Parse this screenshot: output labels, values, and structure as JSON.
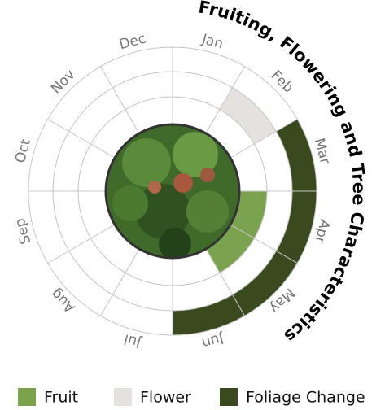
{
  "chart_data": {
    "type": "radial-calendar",
    "title": "Fruiting, Flowering and Tree Characteristics",
    "categories": [
      "Jan",
      "Feb",
      "Mar",
      "Apr",
      "May",
      "Jun",
      "Jul",
      "Aug",
      "Sep",
      "Oct",
      "Nov",
      "Dec"
    ],
    "series": [
      {
        "name": "Fruit",
        "color": "#7ba24f",
        "values": [
          0,
          0,
          0,
          1,
          1,
          0,
          0,
          0,
          0,
          0,
          0,
          0
        ]
      },
      {
        "name": "Flower",
        "color": "#e5e1de",
        "values": [
          0,
          1,
          0,
          0,
          0,
          0,
          0,
          0,
          0,
          0,
          0,
          0
        ]
      },
      {
        "name": "Foliage Change",
        "color": "#3a4a1f",
        "values": [
          0,
          0,
          1,
          1,
          1,
          1,
          0,
          0,
          0,
          0,
          0,
          0
        ]
      }
    ]
  }
}
